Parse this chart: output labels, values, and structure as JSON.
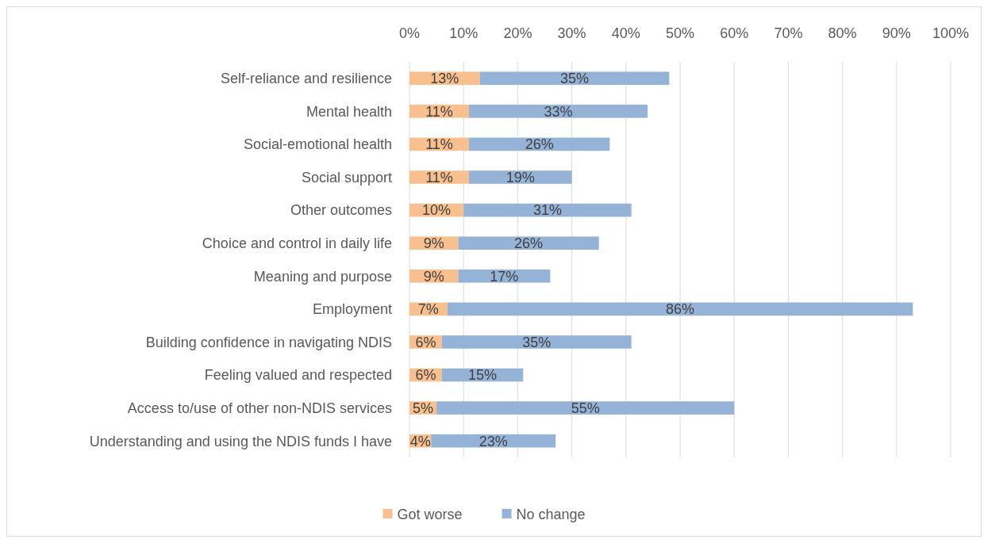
{
  "chart_data": {
    "type": "bar",
    "orientation": "horizontal",
    "stacked": true,
    "categories": [
      "Self-reliance and resilience",
      "Mental health",
      "Social-emotional health",
      "Social support",
      "Other outcomes",
      "Choice and control in daily life",
      "Meaning and purpose",
      "Employment",
      "Building confidence in navigating NDIS",
      "Feeling valued and respected",
      "Access to/use of other non-NDIS services",
      "Understanding and using the NDIS funds I have"
    ],
    "series": [
      {
        "name": "Got worse",
        "color": "#f8c08f",
        "values": [
          13,
          11,
          11,
          11,
          10,
          9,
          9,
          7,
          6,
          6,
          5,
          4
        ],
        "value_labels": [
          "13%",
          "11%",
          "11%",
          "11%",
          "10%",
          "9%",
          "9%",
          "7%",
          "6%",
          "6%",
          "5%",
          "4%"
        ]
      },
      {
        "name": "No change",
        "color": "#95b3d7",
        "values": [
          35,
          33,
          26,
          19,
          31,
          26,
          17,
          86,
          35,
          15,
          55,
          23
        ],
        "value_labels": [
          "35%",
          "33%",
          "26%",
          "19%",
          "31%",
          "26%",
          "17%",
          "86%",
          "35%",
          "15%",
          "55%",
          "23%"
        ]
      }
    ],
    "xlim": [
      0,
      100
    ],
    "xticks": [
      {
        "value": 0,
        "label": "0%"
      },
      {
        "value": 10,
        "label": "10%"
      },
      {
        "value": 20,
        "label": "20%"
      },
      {
        "value": 30,
        "label": "30%"
      },
      {
        "value": 40,
        "label": "40%"
      },
      {
        "value": 50,
        "label": "50%"
      },
      {
        "value": 60,
        "label": "60%"
      },
      {
        "value": 70,
        "label": "70%"
      },
      {
        "value": 80,
        "label": "80%"
      },
      {
        "value": 90,
        "label": "90%"
      },
      {
        "value": 100,
        "label": "100%"
      }
    ],
    "grid": "x",
    "legend": "bottom"
  }
}
